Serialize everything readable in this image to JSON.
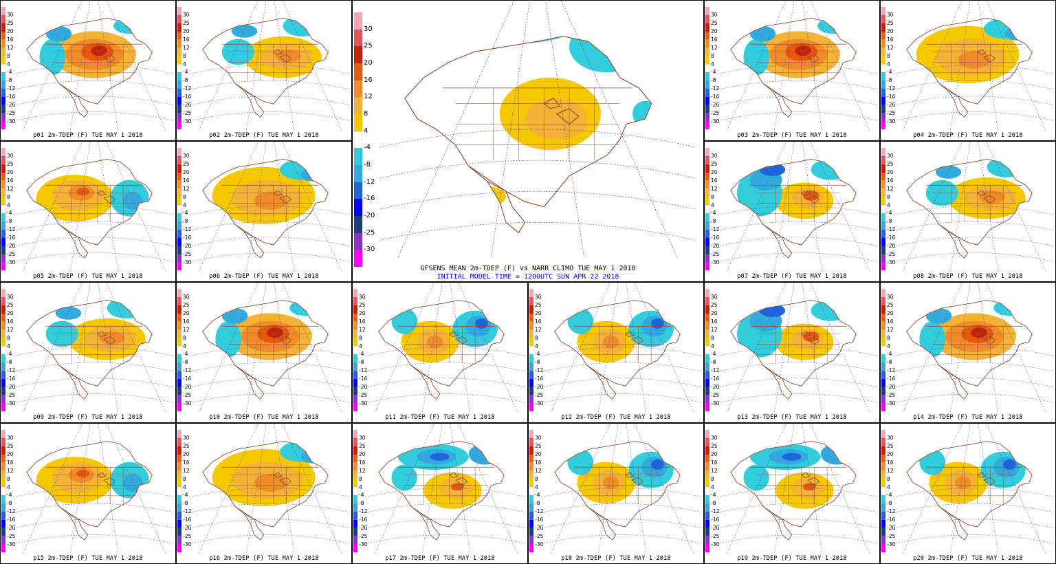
{
  "mean": {
    "title": "GFSENS MEAN 2m-TDEP (F) vs NARR CLIMO TUE MAY  1 2018",
    "subtitle": "INITIAL MODEL TIME = 1200UTC SUN APR 22 2018"
  },
  "legend": {
    "labels": [
      "30",
      "25",
      "20",
      "16",
      "12",
      "8",
      "4",
      "-4",
      "-8",
      "-12",
      "-16",
      "-20",
      "-25",
      "-30"
    ],
    "colors": [
      "#f4a6b4",
      "#e3555a",
      "#c81e0a",
      "#e8590c",
      "#f28c28",
      "#f5b335",
      "#f5c800",
      "#ffffff",
      "#33ccdd",
      "#33aadd",
      "#1e64dc",
      "#0000ff",
      "#1e3c78",
      "#8c32c8",
      "#ff00ff"
    ]
  },
  "members": [
    {
      "id": "p01",
      "caption": "p01 2m-TDEP (F) TUE MAY 1 2018",
      "mode": "warm-central"
    },
    {
      "id": "p02",
      "caption": "p02 2m-TDEP (F) TUE MAY 1 2018",
      "mode": "warm-east"
    },
    {
      "id": "p03",
      "caption": "p03 2m-TDEP (F) TUE MAY 1 2018",
      "mode": "warm-central"
    },
    {
      "id": "p04",
      "caption": "p04 2m-TDEP (F) TUE MAY 1 2018",
      "mode": "warm-broad"
    },
    {
      "id": "p05",
      "caption": "p05 2m-TDEP (F) TUE MAY 1 2018",
      "mode": "warm-west"
    },
    {
      "id": "p06",
      "caption": "p06 2m-TDEP (F) TUE MAY 1 2018",
      "mode": "warm-broad"
    },
    {
      "id": "p07",
      "caption": "p07 2m-TDEP (F) TUE MAY 1 2018",
      "mode": "cold-west"
    },
    {
      "id": "p08",
      "caption": "p08 2m-TDEP (F) TUE MAY 1 2018",
      "mode": "warm-east"
    },
    {
      "id": "p09",
      "caption": "p09 2m-TDEP (F) TUE MAY 1 2018",
      "mode": "warm-east"
    },
    {
      "id": "p10",
      "caption": "p10 2m-TDEP (F) TUE MAY 1 2018",
      "mode": "warm-central"
    },
    {
      "id": "p11",
      "caption": "p11 2m-TDEP (F) TUE MAY 1 2018",
      "mode": "cold-east"
    },
    {
      "id": "p12",
      "caption": "p12 2m-TDEP (F) TUE MAY 1 2018",
      "mode": "cold-east"
    },
    {
      "id": "p13",
      "caption": "p13 2m-TDEP (F) TUE MAY 1 2018",
      "mode": "cold-west"
    },
    {
      "id": "p14",
      "caption": "p14 2m-TDEP (F) TUE MAY 1 2018",
      "mode": "warm-central"
    },
    {
      "id": "p15",
      "caption": "p15 2m-TDEP (F) TUE MAY 1 2018",
      "mode": "warm-west"
    },
    {
      "id": "p16",
      "caption": "p16 2m-TDEP (F) TUE MAY 1 2018",
      "mode": "warm-broad"
    },
    {
      "id": "p17",
      "caption": "p17 2m-TDEP (F) TUE MAY 1 2018",
      "mode": "cold-north"
    },
    {
      "id": "p18",
      "caption": "p18 2m-TDEP (F) TUE MAY 1 2018",
      "mode": "cold-east"
    },
    {
      "id": "p19",
      "caption": "p19 2m-TDEP (F) TUE MAY 1 2018",
      "mode": "cold-north"
    },
    {
      "id": "p20",
      "caption": "p20 2m-TDEP (F) TUE MAY 1 2018",
      "mode": "cold-east"
    }
  ]
}
